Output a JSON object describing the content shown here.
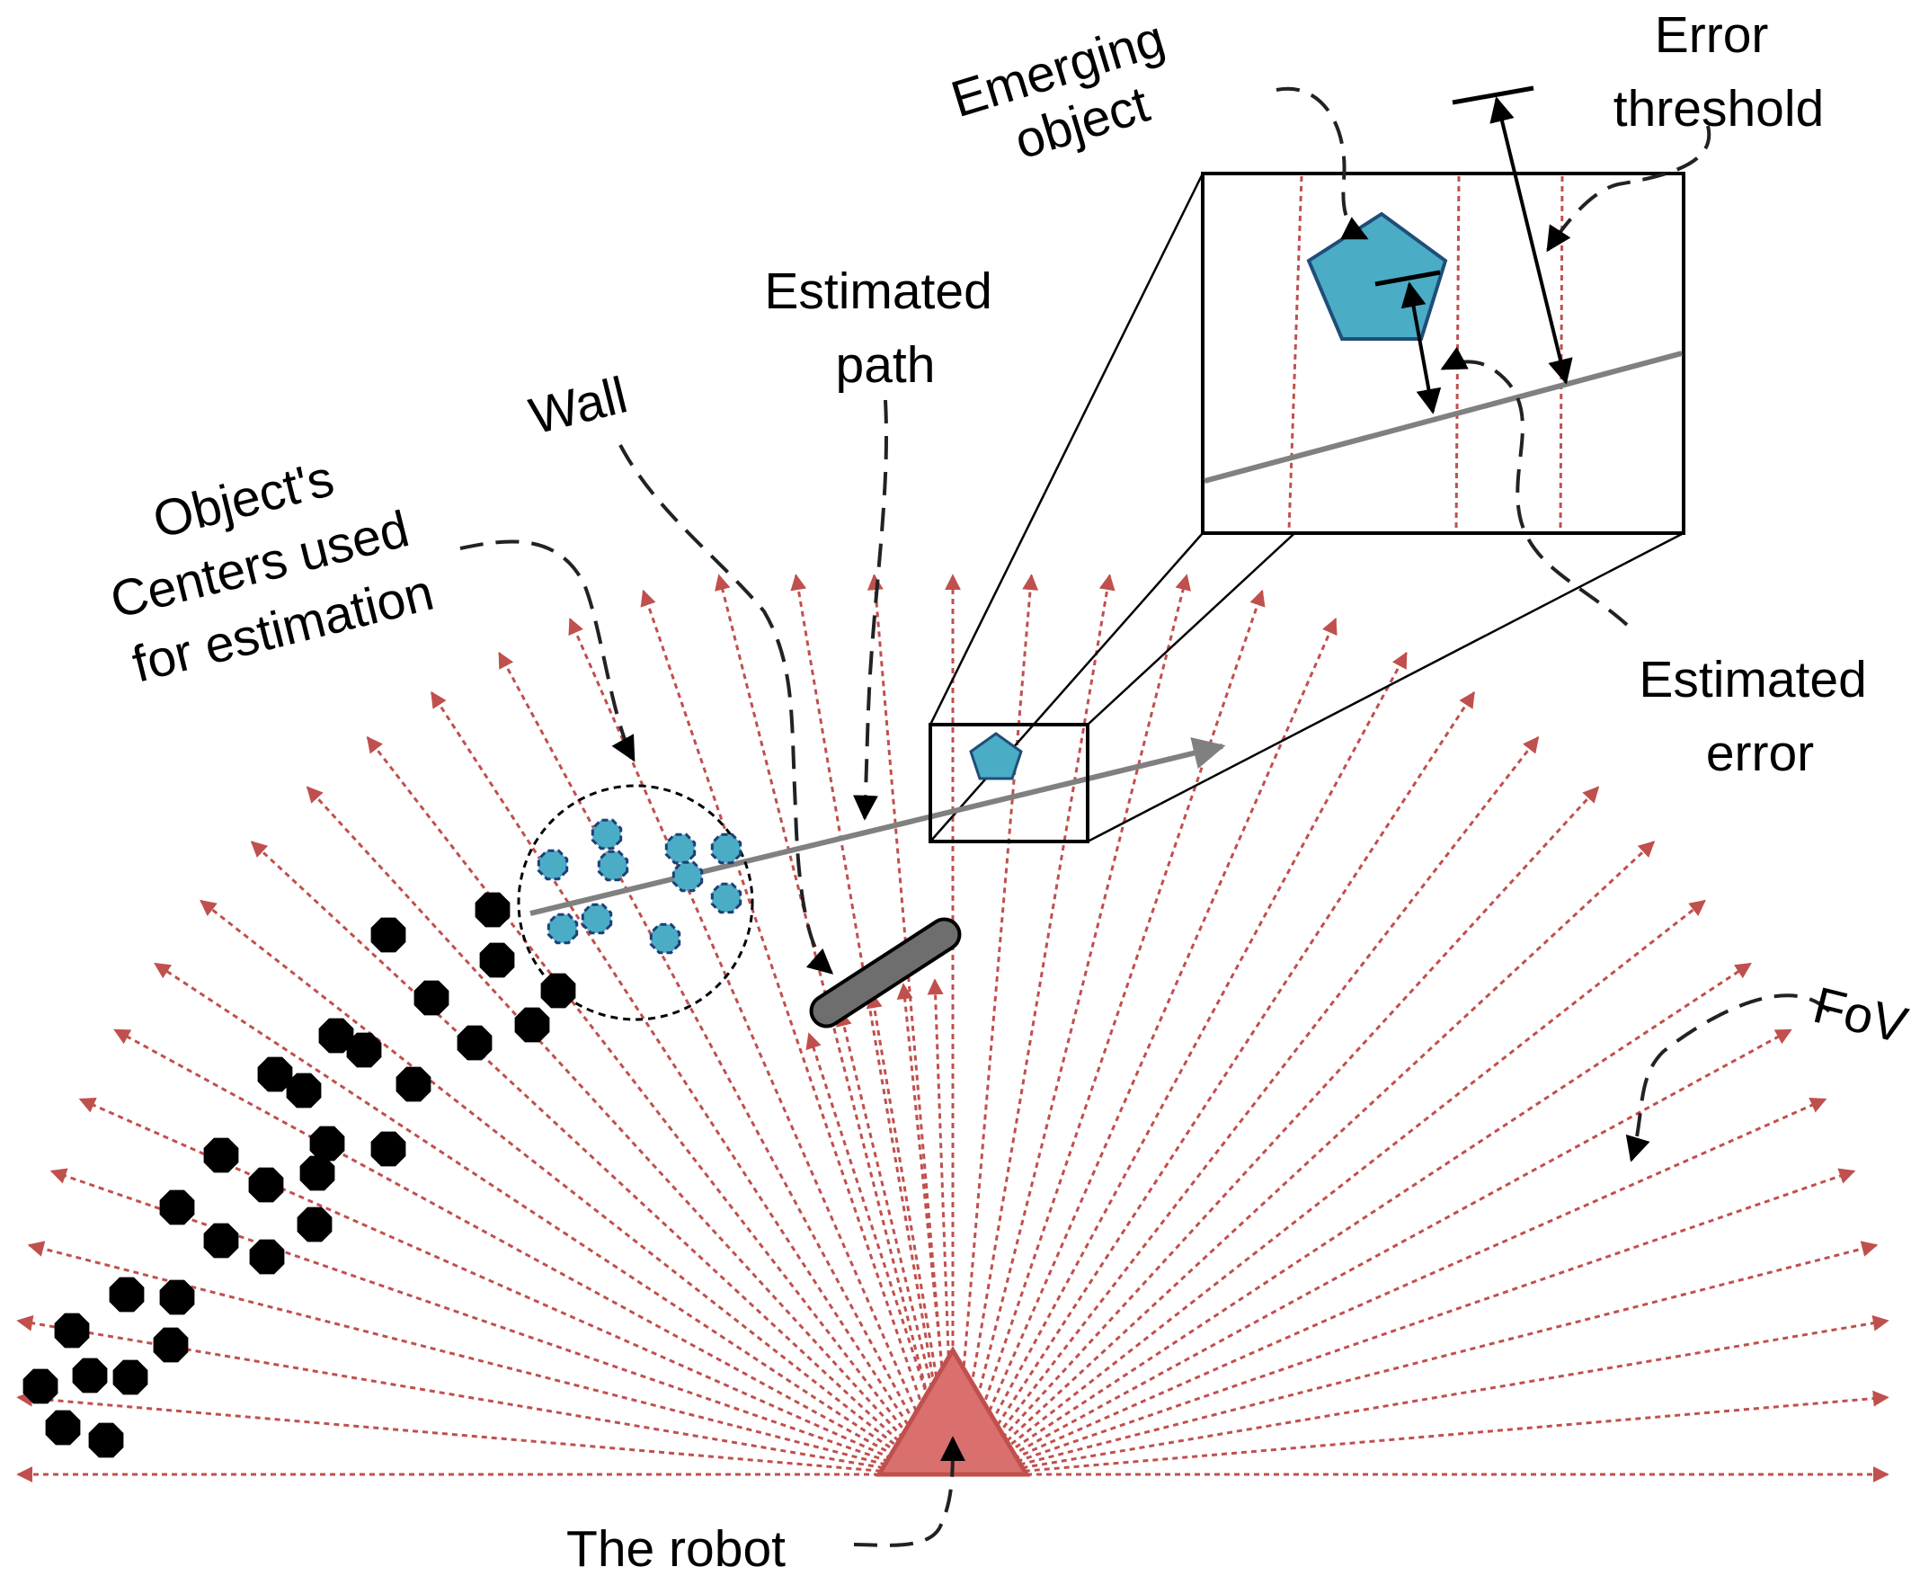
{
  "labels": {
    "emerging_object": [
      "Emerging",
      "object"
    ],
    "error_threshold": [
      "Error",
      "threshold"
    ],
    "estimated_path": [
      "Estimated",
      "path"
    ],
    "wall": "Wall",
    "object_centers": [
      "Object's",
      "Centers used",
      "for estimation"
    ],
    "estimated_error": [
      "Estimated",
      "error"
    ],
    "fov": "FoV",
    "robot": "The robot"
  },
  "colors": {
    "ray": "#c0504d",
    "robot_fill": "#d9706e",
    "robot_stroke": "#c0504d",
    "object_center_fill": "#4bacc6",
    "emerging_object_fill": "#4bacc6",
    "emerging_object_stroke": "#1f4e79",
    "path": "#808080",
    "wall": "#6e6e6e",
    "obstacle": "#000000"
  },
  "icons": {
    "robot": "triangle-icon",
    "emerging_object": "pentagon-icon",
    "obstacle": "hexagon-icon",
    "object_center": "hexagon-icon"
  }
}
